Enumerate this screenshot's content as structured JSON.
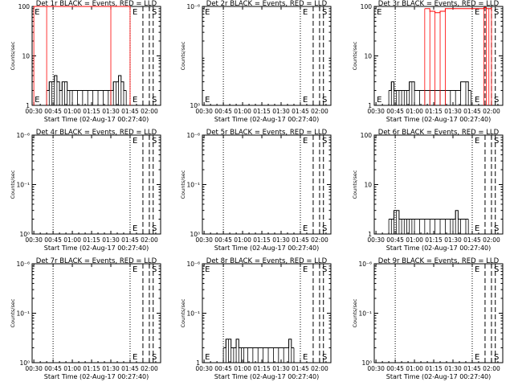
{
  "colors": {
    "events": "#000000",
    "lld": "#ff0000",
    "background": "#ffffff"
  },
  "chart_data": [
    {
      "type": "line",
      "id": "det-1r",
      "title": "Det 1r BLACK = Events, RED = LLD",
      "xlabel": "Start Time (02-Aug-17 00:27:40)",
      "ylabel": "Counts/sec",
      "y_scale": "log",
      "ylim": [
        1,
        100
      ],
      "yticks": [
        {
          "v": 1,
          "label": "1"
        },
        {
          "v": 10,
          "label": "10"
        },
        {
          "v": 100,
          "label": "100"
        }
      ],
      "xticks": [
        "00:30",
        "00:45",
        "01:00",
        "01:15",
        "01:30",
        "01:45",
        "02:00"
      ],
      "annotations": [
        {
          "text": "E",
          "x": "00:30"
        },
        {
          "text": "E",
          "x": "01:45"
        },
        {
          "text": "S",
          "x": "02:00"
        }
      ],
      "events": {
        "name": "Events",
        "x": [
          "00:40",
          "00:42",
          "00:44",
          "00:46",
          "00:48",
          "00:50",
          "00:52",
          "00:54",
          "00:56",
          "00:58",
          "01:00",
          "01:04",
          "01:08",
          "01:12",
          "01:16",
          "01:20",
          "01:24",
          "01:28",
          "01:30",
          "01:32",
          "01:34",
          "01:36",
          "01:38",
          "01:40",
          "01:42"
        ],
        "y": [
          2,
          3,
          3,
          4,
          3,
          2,
          3,
          3,
          2,
          2,
          2,
          2,
          2,
          2,
          2,
          2,
          2,
          2,
          2,
          3,
          3,
          4,
          3,
          2,
          2
        ]
      },
      "lld": {
        "name": "LLD",
        "x": [
          "00:30",
          "00:40",
          "01:30",
          "01:45"
        ],
        "y": [
          100,
          100,
          100,
          100
        ]
      }
    },
    {
      "type": "line",
      "id": "det-2r",
      "title": "Det 2r BLACK = Events, RED = LLD",
      "xlabel": "Start Time (02-Aug-17 00:27:40)",
      "ylabel": "Counts/sec",
      "y_scale": "log",
      "ylim": [
        1,
        100
      ],
      "yticks": [
        {
          "v": 1,
          "label": "10⁰"
        },
        {
          "v": 100,
          "label": "10⁻⁶"
        }
      ],
      "xticks": [
        "00:30",
        "00:45",
        "01:00",
        "01:15",
        "01:30",
        "01:45",
        "02:00"
      ],
      "annotations": [
        {
          "text": "E",
          "x": "00:30"
        },
        {
          "text": "E",
          "x": "01:45"
        },
        {
          "text": "S",
          "x": "02:00"
        }
      ],
      "events": {
        "name": "Events",
        "x": [],
        "y": []
      },
      "lld": {
        "name": "LLD",
        "x": [],
        "y": []
      }
    },
    {
      "type": "line",
      "id": "det-3r",
      "title": "Det 3r BLACK = Events, RED = LLD",
      "xlabel": "Start Time (02-Aug-17 00:27:40)",
      "ylabel": "Counts/sec",
      "y_scale": "log",
      "ylim": [
        1,
        100
      ],
      "yticks": [
        {
          "v": 1,
          "label": "1"
        },
        {
          "v": 10,
          "label": "10"
        },
        {
          "v": 100,
          "label": "100"
        }
      ],
      "xticks": [
        "00:30",
        "00:45",
        "01:00",
        "01:15",
        "01:30",
        "01:45",
        "02:00"
      ],
      "annotations": [
        {
          "text": "E",
          "x": "00:30"
        },
        {
          "text": "E",
          "x": "01:45"
        },
        {
          "text": "S",
          "x": "02:00"
        }
      ],
      "events": {
        "name": "Events",
        "x": [
          "00:40",
          "00:42",
          "00:44",
          "00:46",
          "00:48",
          "00:50",
          "00:52",
          "00:54",
          "00:56",
          "00:58",
          "01:00",
          "01:04",
          "01:08",
          "01:12",
          "01:16",
          "01:20",
          "01:24",
          "01:28",
          "01:32",
          "01:36",
          "01:40",
          "01:42",
          "01:44"
        ],
        "y": [
          2,
          3,
          2,
          2,
          2,
          2,
          2,
          2,
          3,
          3,
          2,
          2,
          2,
          2,
          2,
          2,
          2,
          2,
          2,
          3,
          3,
          2,
          2
        ]
      },
      "lld": {
        "name": "LLD",
        "x": [
          "01:08",
          "01:12",
          "01:16",
          "01:20",
          "01:24",
          "01:54",
          "01:56",
          "01:58",
          "02:00"
        ],
        "y": [
          90,
          80,
          75,
          80,
          90,
          95,
          90,
          90,
          95
        ]
      }
    },
    {
      "type": "line",
      "id": "det-4r",
      "title": "Det 4r BLACK = Events, RED = LLD",
      "xlabel": "Start Time (02-Aug-17 00:27:40)",
      "ylabel": "Counts/sec",
      "y_scale": "log",
      "ylim": [
        1,
        100
      ],
      "yticks": [
        {
          "v": 1,
          "label": "10⁰"
        },
        {
          "v": 10,
          "label": "10⁻¹"
        },
        {
          "v": 100,
          "label": "10⁻⁶"
        }
      ],
      "xticks": [
        "00:30",
        "00:45",
        "01:00",
        "01:15",
        "01:30",
        "01:45",
        "02:00"
      ],
      "annotations": [
        {
          "text": "E",
          "x": "01:45"
        },
        {
          "text": "S",
          "x": "02:00"
        }
      ],
      "events": {
        "name": "Events",
        "x": [],
        "y": []
      },
      "lld": {
        "name": "LLD",
        "x": [],
        "y": []
      }
    },
    {
      "type": "line",
      "id": "det-5r",
      "title": "Det 5r BLACK = Events, RED = LLD",
      "xlabel": "Start Time (02-Aug-17 00:27:40)",
      "ylabel": "Counts/sec",
      "y_scale": "log",
      "ylim": [
        1,
        100
      ],
      "yticks": [
        {
          "v": 1,
          "label": "10⁰"
        },
        {
          "v": 10,
          "label": "10⁻¹"
        },
        {
          "v": 100,
          "label": "10⁻⁶"
        }
      ],
      "xticks": [
        "00:30",
        "00:45",
        "01:00",
        "01:15",
        "01:30",
        "01:45",
        "02:00"
      ],
      "annotations": [
        {
          "text": "E",
          "x": "01:45"
        },
        {
          "text": "S",
          "x": "02:00"
        }
      ],
      "events": {
        "name": "Events",
        "x": [],
        "y": []
      },
      "lld": {
        "name": "LLD",
        "x": [],
        "y": []
      }
    },
    {
      "type": "line",
      "id": "det-6r",
      "title": "Det 6r BLACK = Events, RED = LLD",
      "xlabel": "Start Time (02-Aug-17 00:27:40)",
      "ylabel": "Counts/sec",
      "y_scale": "log",
      "ylim": [
        1,
        100
      ],
      "yticks": [
        {
          "v": 1,
          "label": "1"
        },
        {
          "v": 10,
          "label": "10"
        },
        {
          "v": 100,
          "label": "100"
        }
      ],
      "xticks": [
        "00:30",
        "00:45",
        "01:00",
        "01:15",
        "01:30",
        "01:45",
        "02:00"
      ],
      "annotations": [
        {
          "text": "E",
          "x": "01:45"
        },
        {
          "text": "S",
          "x": "02:00"
        }
      ],
      "events": {
        "name": "Events",
        "x": [
          "00:40",
          "00:42",
          "00:44",
          "00:46",
          "00:48",
          "00:50",
          "00:52",
          "00:54",
          "00:56",
          "00:58",
          "01:00",
          "01:04",
          "01:08",
          "01:12",
          "01:16",
          "01:20",
          "01:24",
          "01:28",
          "01:30",
          "01:32",
          "01:34",
          "01:36",
          "01:40",
          "01:42"
        ],
        "y": [
          2,
          2,
          3,
          3,
          2,
          2,
          2,
          2,
          2,
          2,
          2,
          2,
          2,
          2,
          2,
          2,
          2,
          2,
          2,
          3,
          2,
          2,
          2,
          2
        ]
      },
      "lld": {
        "name": "LLD",
        "x": [],
        "y": []
      }
    },
    {
      "type": "line",
      "id": "det-7r",
      "title": "Det 7r BLACK = Events, RED = LLD",
      "xlabel": "Start Time (02-Aug-17 00:27:40)",
      "ylabel": "Counts/sec",
      "y_scale": "log",
      "ylim": [
        1,
        100
      ],
      "yticks": [
        {
          "v": 1,
          "label": "10⁰"
        },
        {
          "v": 10,
          "label": "10⁻¹"
        },
        {
          "v": 100,
          "label": "10⁻⁶"
        }
      ],
      "xticks": [
        "00:30",
        "00:45",
        "01:00",
        "01:15",
        "01:30",
        "01:45",
        "02:00"
      ],
      "annotations": [
        {
          "text": "E",
          "x": "01:45"
        },
        {
          "text": "S",
          "x": "02:00"
        }
      ],
      "events": {
        "name": "Events",
        "x": [],
        "y": []
      },
      "lld": {
        "name": "LLD",
        "x": [],
        "y": []
      }
    },
    {
      "type": "line",
      "id": "det-8r",
      "title": "Det 8r BLACK = Events, RED = LLD",
      "xlabel": "Start Time (02-Aug-17 00:27:40)",
      "ylabel": "Counts/sec",
      "y_scale": "log",
      "ylim": [
        1,
        100
      ],
      "yticks": [
        {
          "v": 1,
          "label": "1"
        },
        {
          "v": 10,
          "label": "10⁻¹"
        },
        {
          "v": 100,
          "label": "10⁻⁶"
        }
      ],
      "xticks": [
        "00:30",
        "00:45",
        "01:00",
        "01:15",
        "01:30",
        "01:45",
        "02:00"
      ],
      "annotations": [
        {
          "text": "E",
          "x": "00:30"
        },
        {
          "text": "E",
          "x": "01:45"
        },
        {
          "text": "S",
          "x": "02:00"
        }
      ],
      "events": {
        "name": "Events",
        "x": [
          "00:45",
          "00:47",
          "00:49",
          "00:51",
          "00:53",
          "00:55",
          "00:57",
          "00:59",
          "01:01",
          "01:04",
          "01:08",
          "01:12",
          "01:16",
          "01:20",
          "01:24",
          "01:28",
          "01:32",
          "01:36",
          "01:38",
          "01:40"
        ],
        "y": [
          2,
          3,
          3,
          2,
          2,
          3,
          2,
          2,
          2,
          2,
          2,
          2,
          2,
          2,
          2,
          2,
          2,
          3,
          2,
          2
        ]
      },
      "lld": {
        "name": "LLD",
        "x": [],
        "y": []
      }
    },
    {
      "type": "line",
      "id": "det-9r",
      "title": "Det 9r BLACK = Events, RED = LLD",
      "xlabel": "Start Time (02-Aug-17 00:27:40)",
      "ylabel": "Counts/sec",
      "y_scale": "log",
      "ylim": [
        1,
        100
      ],
      "yticks": [
        {
          "v": 1,
          "label": "10⁰"
        },
        {
          "v": 10,
          "label": "10⁻¹"
        },
        {
          "v": 100,
          "label": "10⁻⁶"
        }
      ],
      "xticks": [
        "00:30",
        "00:45",
        "01:00",
        "01:15",
        "01:30",
        "01:45",
        "02:00"
      ],
      "annotations": [
        {
          "text": "E",
          "x": "01:45"
        },
        {
          "text": "S",
          "x": "02:00"
        }
      ],
      "events": {
        "name": "Events",
        "x": [],
        "y": []
      },
      "lld": {
        "name": "LLD",
        "x": [],
        "y": []
      }
    }
  ]
}
